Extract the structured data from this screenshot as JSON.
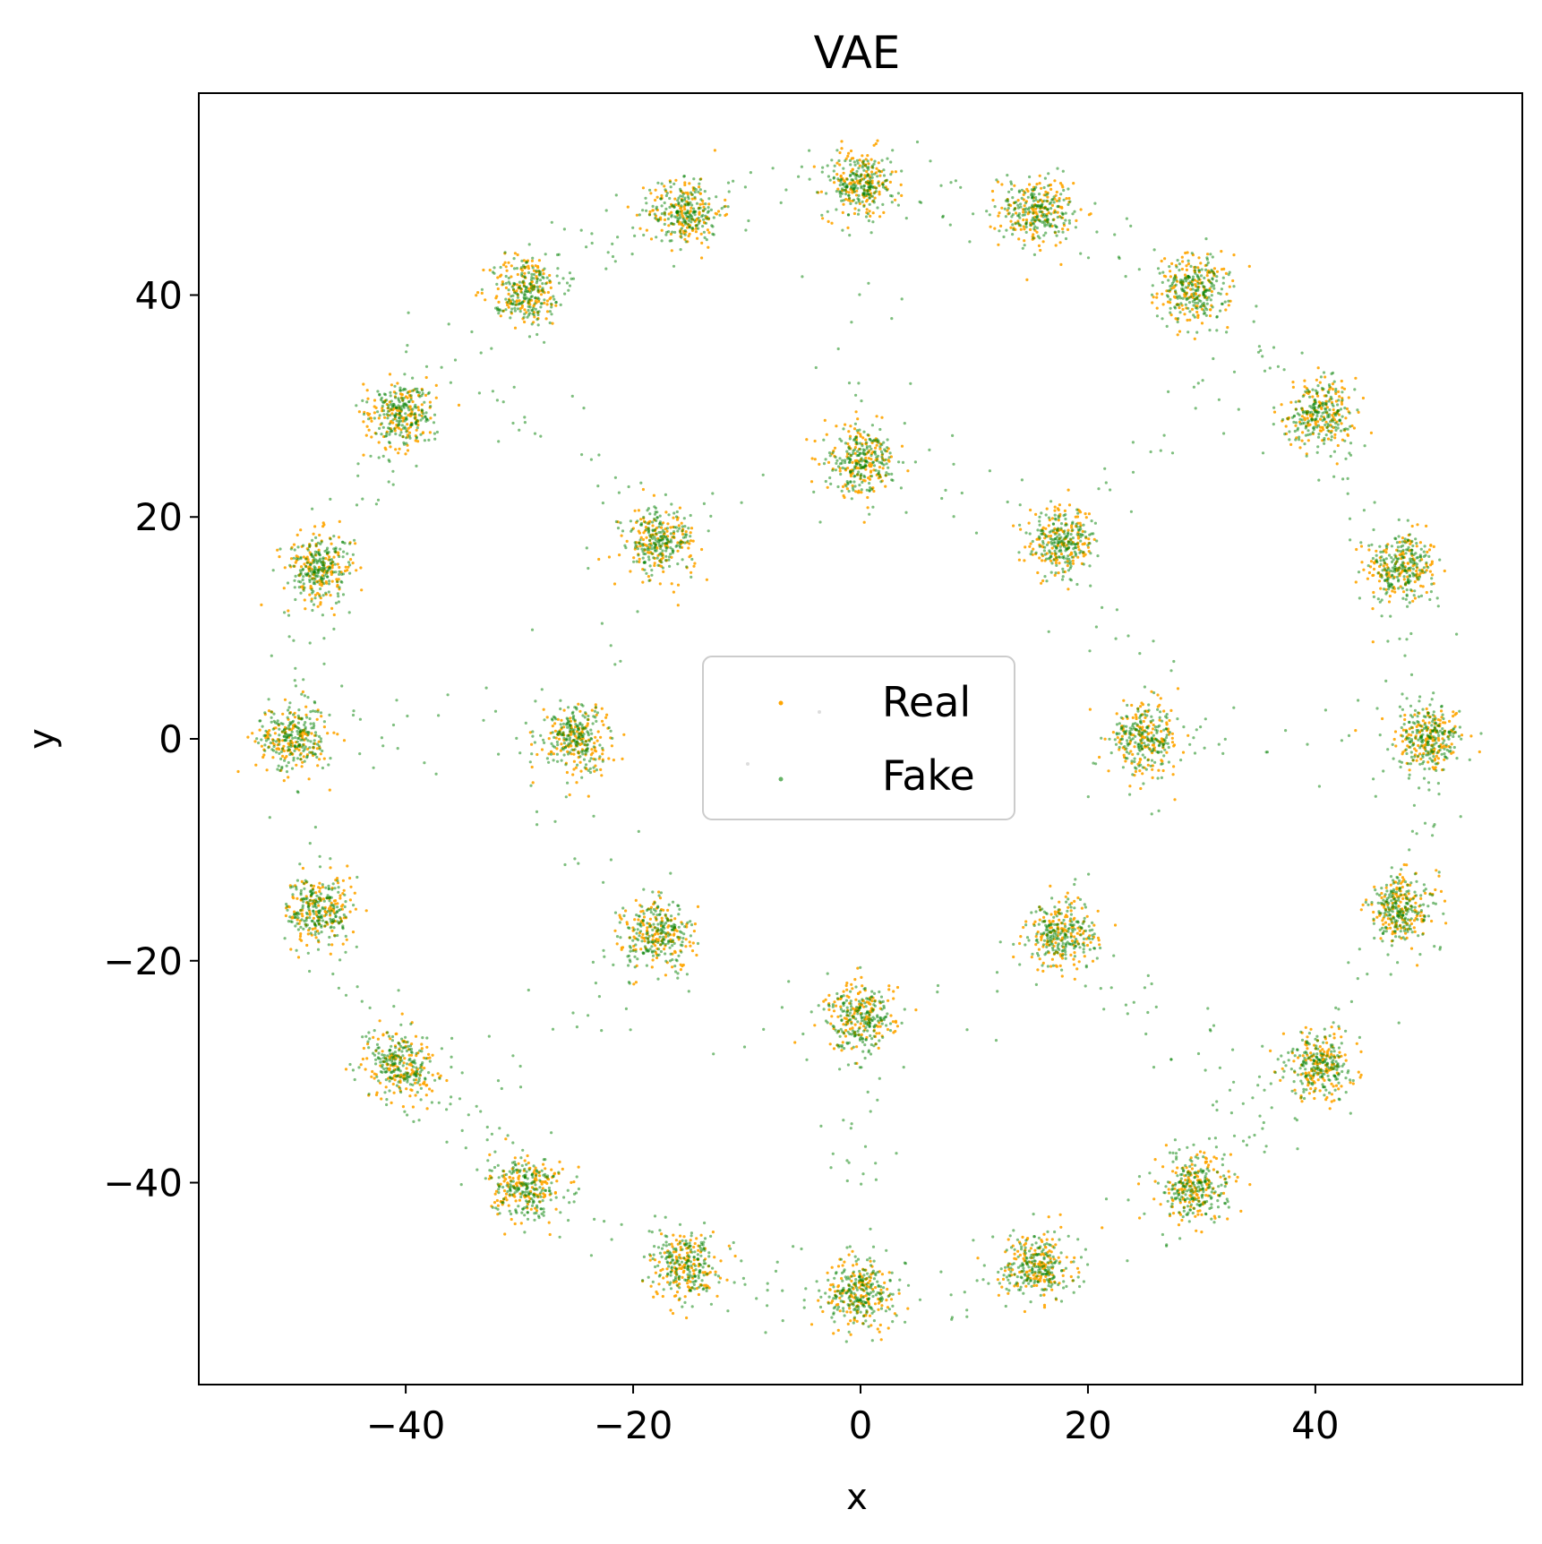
{
  "chart_data": {
    "type": "scatter",
    "title": "VAE",
    "xlabel": "x",
    "ylabel": "y",
    "xlim": [
      -58.2,
      58.2
    ],
    "ylim": [
      -58.2,
      58.2
    ],
    "xticks": [
      -40,
      -20,
      0,
      20,
      40
    ],
    "yticks": [
      -40,
      -20,
      0,
      20,
      40
    ],
    "xtick_labels": [
      "−40",
      "−20",
      "0",
      "20",
      "40"
    ],
    "ytick_labels": [
      "−40",
      "−20",
      "0",
      "20",
      "40"
    ],
    "grid": false,
    "legend_position": "center",
    "colors": {
      "real": "#ffa500",
      "fake": "#008000"
    },
    "clusters": {
      "outer_ring": {
        "radius": 50,
        "centers": [
          [
            50.0,
            0.0
          ],
          [
            47.55,
            15.45
          ],
          [
            40.45,
            29.39
          ],
          [
            29.39,
            40.45
          ],
          [
            15.45,
            47.55
          ],
          [
            0.0,
            50.0
          ],
          [
            -15.45,
            47.55
          ],
          [
            -29.39,
            40.45
          ],
          [
            -40.45,
            29.39
          ],
          [
            -47.55,
            15.45
          ],
          [
            -50.0,
            0.0
          ],
          [
            -47.55,
            -15.45
          ],
          [
            -40.45,
            -29.39
          ],
          [
            -29.39,
            -40.45
          ],
          [
            -15.45,
            -47.55
          ],
          [
            0.0,
            -50.0
          ],
          [
            15.45,
            -47.55
          ],
          [
            29.39,
            -40.45
          ],
          [
            40.45,
            -29.39
          ],
          [
            47.55,
            -15.45
          ]
        ]
      },
      "inner_ring": {
        "radius": 25,
        "centers": [
          [
            25.0,
            0.0
          ],
          [
            17.68,
            17.68
          ],
          [
            0.0,
            25.0
          ],
          [
            -17.68,
            17.68
          ],
          [
            -25.0,
            0.0
          ],
          [
            -17.68,
            -17.68
          ],
          [
            0.0,
            -25.0
          ],
          [
            17.68,
            -17.68
          ]
        ]
      }
    },
    "series": [
      {
        "name": "Real",
        "color": "#ffa500",
        "cluster_std": 1.6,
        "points_per_cluster": 140,
        "marker_radius": 1.6,
        "opacity": 0.9
      },
      {
        "name": "Fake",
        "color": "#008000",
        "cluster_std": 1.4,
        "points_per_cluster": 180,
        "marker_radius": 1.6,
        "opacity": 0.5,
        "scatter_between_clusters": 900
      }
    ]
  }
}
